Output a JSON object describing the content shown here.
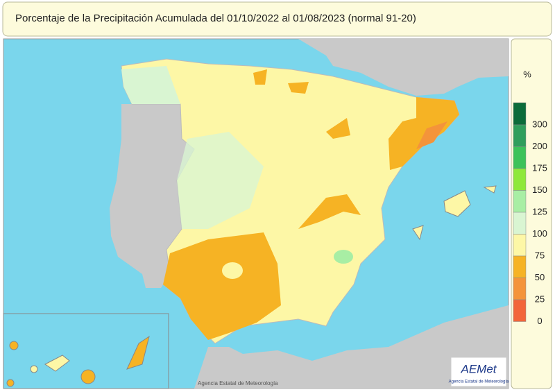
{
  "header": {
    "title": "Porcentaje de la Precipitación Acumulada del 01/10/2022 al 01/08/2023 (normal 91-20)"
  },
  "legend": {
    "unit": "%",
    "ticks": [
      "300",
      "200",
      "175",
      "150",
      "125",
      "100",
      "75",
      "50",
      "25",
      "0"
    ],
    "colors": [
      "#0b6b3a",
      "#2f9e5c",
      "#3cc25a",
      "#8ee83a",
      "#a8eea4",
      "#d9f5d2",
      "#fdf7a6",
      "#f6b324",
      "#f4943a",
      "#f2653a"
    ]
  },
  "map": {
    "credit": "Agencia Estatal de Meteorología"
  },
  "logo": {
    "name": "AEMet",
    "subtitle": "Agencia Estatal de Meteorología"
  }
}
